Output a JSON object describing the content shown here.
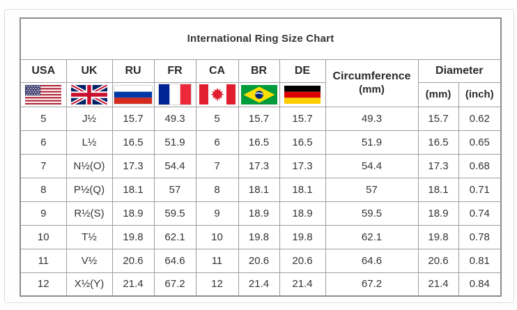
{
  "title": "International Ring Size Chart",
  "colors": {
    "table_outer_border": "#8c8c8c",
    "grid_line": "#9e9e9e",
    "title_text": "#171717",
    "header_text": "#2b2b2b",
    "cell_text": "#333333",
    "frame": "#dcdcdc",
    "background": "#fefefe"
  },
  "chart_data": {
    "type": "table",
    "title": "International Ring Size Chart",
    "country_columns": [
      {
        "label": "USA",
        "flag": "us-flag"
      },
      {
        "label": "UK",
        "flag": "uk-flag"
      },
      {
        "label": "RU",
        "flag": "ru-flag"
      },
      {
        "label": "FR",
        "flag": "fr-flag"
      },
      {
        "label": "CA",
        "flag": "ca-flag"
      },
      {
        "label": "BR",
        "flag": "br-flag"
      },
      {
        "label": "DE",
        "flag": "de-flag"
      }
    ],
    "circumference_column": {
      "label": "Circumference",
      "unit": "(mm)"
    },
    "diameter_column": {
      "label": "Diameter",
      "units": [
        "(mm)",
        "(inch)"
      ]
    },
    "rows": [
      {
        "usa": "5",
        "uk": "J½",
        "ru": "15.7",
        "fr": "49.3",
        "ca": "5",
        "br": "15.7",
        "de": "15.7",
        "circumference_mm": "49.3",
        "diameter_mm": "15.7",
        "diameter_inch": "0.62"
      },
      {
        "usa": "6",
        "uk": "L½",
        "ru": "16.5",
        "fr": "51.9",
        "ca": "6",
        "br": "16.5",
        "de": "16.5",
        "circumference_mm": "51.9",
        "diameter_mm": "16.5",
        "diameter_inch": "0.65"
      },
      {
        "usa": "7",
        "uk": "N½(O)",
        "ru": "17.3",
        "fr": "54.4",
        "ca": "7",
        "br": "17.3",
        "de": "17.3",
        "circumference_mm": "54.4",
        "diameter_mm": "17.3",
        "diameter_inch": "0.68"
      },
      {
        "usa": "8",
        "uk": "P½(Q)",
        "ru": "18.1",
        "fr": "57",
        "ca": "8",
        "br": "18.1",
        "de": "18.1",
        "circumference_mm": "57",
        "diameter_mm": "18.1",
        "diameter_inch": "0.71"
      },
      {
        "usa": "9",
        "uk": "R½(S)",
        "ru": "18.9",
        "fr": "59.5",
        "ca": "9",
        "br": "18.9",
        "de": "18.9",
        "circumference_mm": "59.5",
        "diameter_mm": "18.9",
        "diameter_inch": "0.74"
      },
      {
        "usa": "10",
        "uk": "T½",
        "ru": "19.8",
        "fr": "62.1",
        "ca": "10",
        "br": "19.8",
        "de": "19.8",
        "circumference_mm": "62.1",
        "diameter_mm": "19.8",
        "diameter_inch": "0.78"
      },
      {
        "usa": "11",
        "uk": "V½",
        "ru": "20.6",
        "fr": "64.6",
        "ca": "11",
        "br": "20.6",
        "de": "20.6",
        "circumference_mm": "64.6",
        "diameter_mm": "20.6",
        "diameter_inch": "0.81"
      },
      {
        "usa": "12",
        "uk": "X½(Y)",
        "ru": "21.4",
        "fr": "67.2",
        "ca": "12",
        "br": "21.4",
        "de": "21.4",
        "circumference_mm": "67.2",
        "diameter_mm": "21.4",
        "diameter_inch": "0.84"
      }
    ]
  }
}
